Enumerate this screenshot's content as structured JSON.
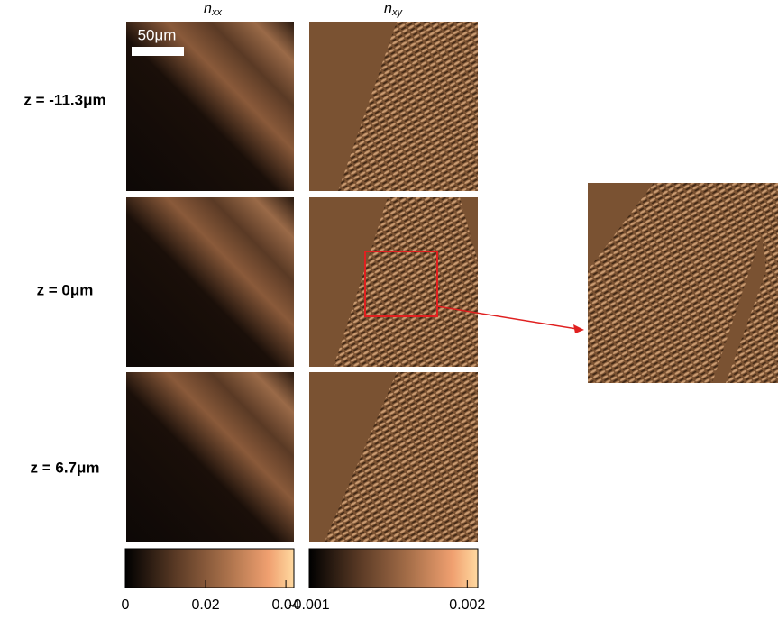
{
  "columns": [
    {
      "symbol": "n",
      "subscript": "xx"
    },
    {
      "symbol": "n",
      "subscript": "xy"
    }
  ],
  "scale_bar": "50μm",
  "rows": [
    "z = -11.3μm",
    "z = 0μm",
    "z = 6.7μm"
  ],
  "colorbars": [
    {
      "xlim": [
        0,
        0.042
      ],
      "xticks": [
        0,
        0.02,
        0.04
      ]
    },
    {
      "xlim": [
        -0.001,
        0.0022
      ],
      "xticks": [
        -0.001,
        0.002
      ]
    }
  ]
}
